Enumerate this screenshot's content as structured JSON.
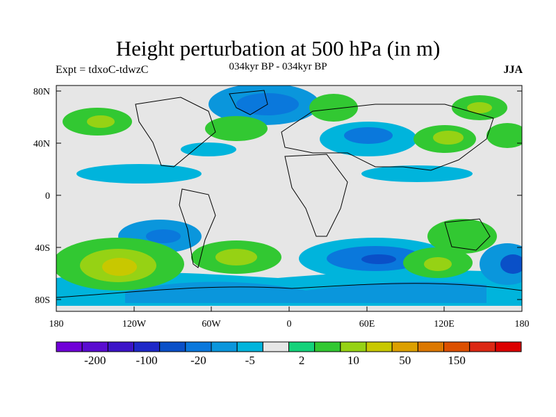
{
  "map": {
    "title": "Height perturbation at 500 hPa (in m)",
    "experiment_label": "Expt = tdxoC-tdwzC",
    "period_label": "034kyr BP - 034kyr BP",
    "season_label": "JJA",
    "lat_ticks": [
      "80N",
      "40N",
      "0",
      "40S",
      "80S"
    ],
    "lon_ticks": [
      "180",
      "120W",
      "60W",
      "0",
      "60E",
      "120E",
      "180"
    ],
    "colors": {
      "neutral": "#e6e6e6",
      "land_outline": "#000000"
    }
  },
  "colorbar": {
    "colors": [
      "#7000d8",
      "#5a0cd0",
      "#3c14c8",
      "#1e28c8",
      "#0a50c8",
      "#0a78dc",
      "#0a96dc",
      "#00b4dc",
      "#e6e6e6",
      "#14d27a",
      "#32c832",
      "#96d214",
      "#c8c800",
      "#dca000",
      "#dc7800",
      "#dc5000",
      "#dc2814",
      "#dc0000"
    ],
    "labels": [
      "-200",
      "-100",
      "-20",
      "-5",
      "2",
      "10",
      "50",
      "150"
    ]
  }
}
